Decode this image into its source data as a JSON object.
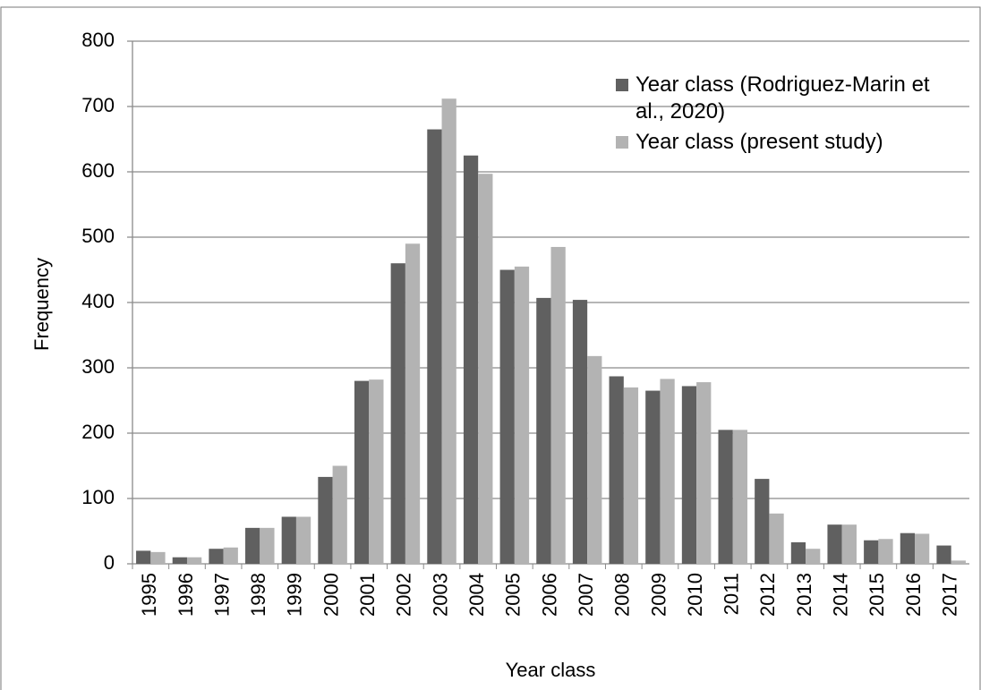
{
  "chart_data": {
    "type": "bar",
    "x_label": "Year class",
    "y_label": "Frequency",
    "categories": [
      "1995",
      "1996",
      "1997",
      "1998",
      "1999",
      "2000",
      "2001",
      "2002",
      "2003",
      "2004",
      "2005",
      "2006",
      "2007",
      "2008",
      "2009",
      "2010",
      "2011",
      "2012",
      "2013",
      "2014",
      "2015",
      "2016",
      "2017"
    ],
    "series": [
      {
        "name": "Year class (Rodriguez-Marin et al., 2020)",
        "color": "#606060",
        "values": [
          20,
          10,
          23,
          55,
          72,
          133,
          280,
          460,
          665,
          625,
          450,
          407,
          404,
          287,
          265,
          272,
          205,
          130,
          33,
          60,
          36,
          47,
          28
        ]
      },
      {
        "name": "Year class (present study)",
        "color": "#b3b3b3",
        "values": [
          18,
          10,
          25,
          55,
          72,
          150,
          282,
          490,
          712,
          597,
          455,
          485,
          318,
          270,
          283,
          278,
          205,
          77,
          23,
          60,
          38,
          46,
          5
        ]
      }
    ],
    "ylim": [
      0,
      800
    ],
    "yticks": [
      0,
      100,
      200,
      300,
      400,
      500,
      600,
      700,
      800
    ],
    "grid": true,
    "legend": "upper right"
  }
}
